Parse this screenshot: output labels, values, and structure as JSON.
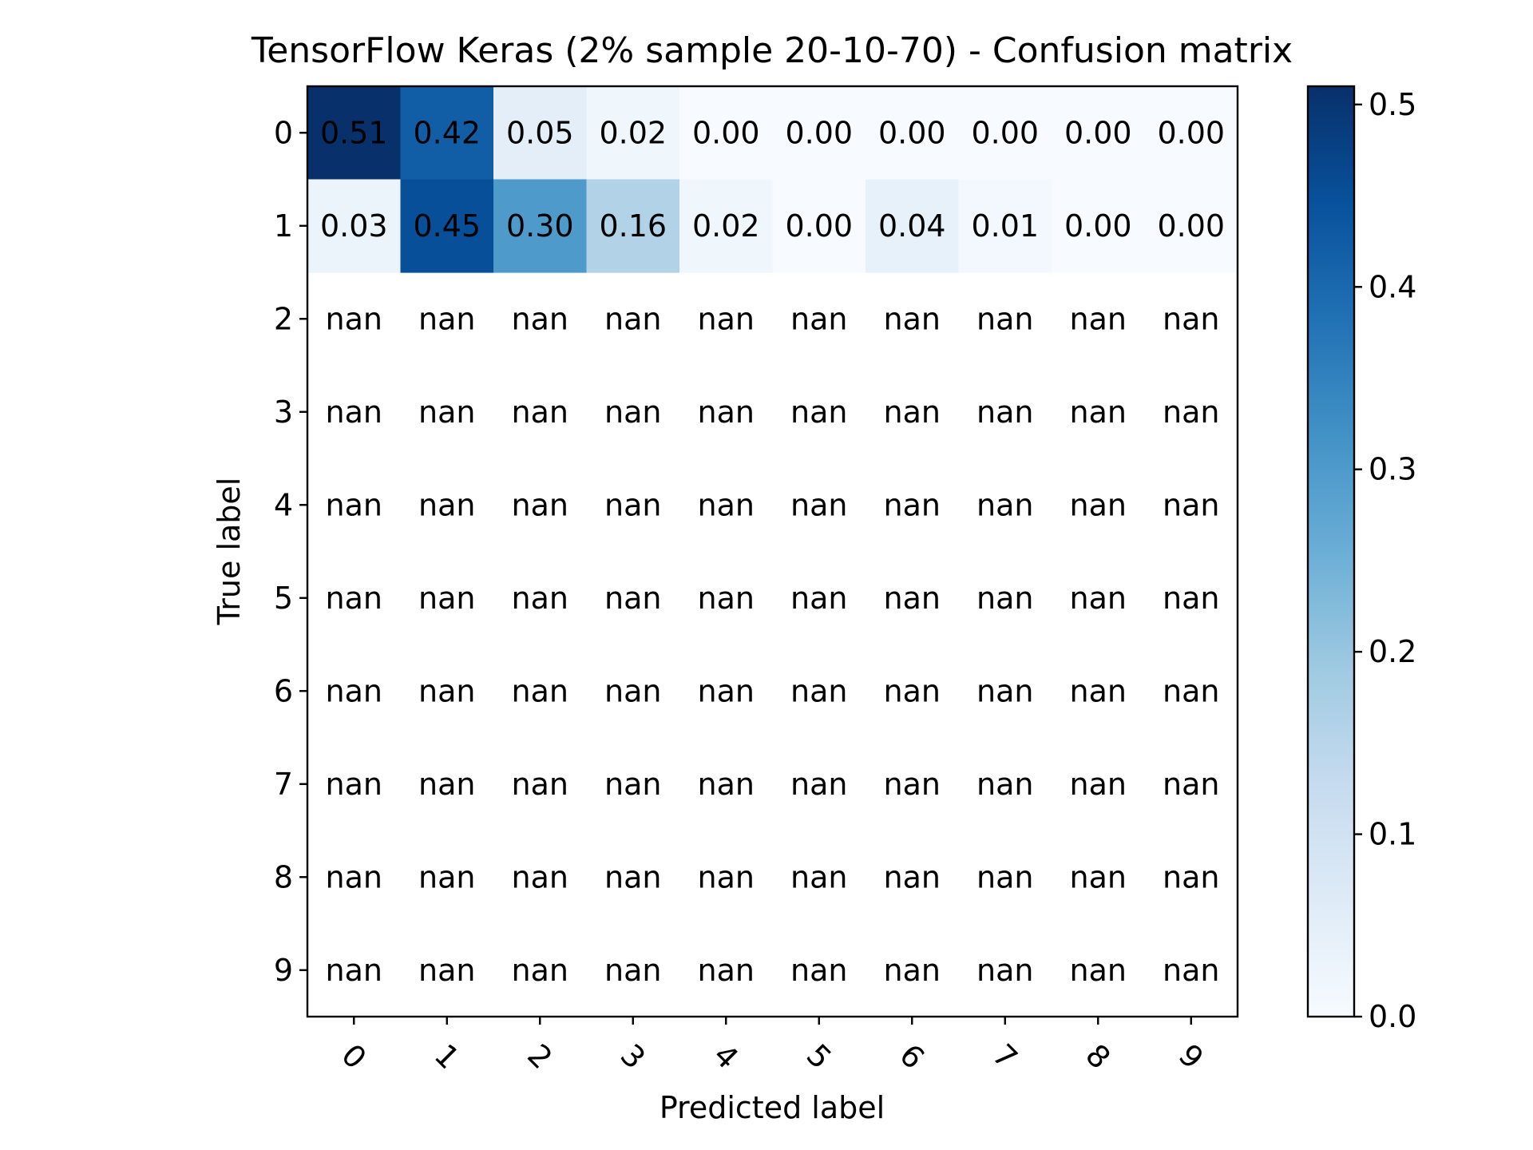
{
  "chart_data": {
    "type": "heatmap",
    "title": "TensorFlow Keras (2% sample 20-10-70) - Confusion matrix",
    "xlabel": "Predicted label",
    "ylabel": "True label",
    "x_categories": [
      "0",
      "1",
      "2",
      "3",
      "4",
      "5",
      "6",
      "7",
      "8",
      "9"
    ],
    "y_categories": [
      "0",
      "1",
      "2",
      "3",
      "4",
      "5",
      "6",
      "7",
      "8",
      "9"
    ],
    "values": [
      [
        0.51,
        0.42,
        0.05,
        0.02,
        0.0,
        0.0,
        0.0,
        0.0,
        0.0,
        0.0
      ],
      [
        0.03,
        0.45,
        0.3,
        0.16,
        0.02,
        0.0,
        0.04,
        0.01,
        0.0,
        0.0
      ],
      [
        null,
        null,
        null,
        null,
        null,
        null,
        null,
        null,
        null,
        null
      ],
      [
        null,
        null,
        null,
        null,
        null,
        null,
        null,
        null,
        null,
        null
      ],
      [
        null,
        null,
        null,
        null,
        null,
        null,
        null,
        null,
        null,
        null
      ],
      [
        null,
        null,
        null,
        null,
        null,
        null,
        null,
        null,
        null,
        null
      ],
      [
        null,
        null,
        null,
        null,
        null,
        null,
        null,
        null,
        null,
        null
      ],
      [
        null,
        null,
        null,
        null,
        null,
        null,
        null,
        null,
        null,
        null
      ],
      [
        null,
        null,
        null,
        null,
        null,
        null,
        null,
        null,
        null,
        null
      ],
      [
        null,
        null,
        null,
        null,
        null,
        null,
        null,
        null,
        null,
        null
      ]
    ],
    "cell_labels": [
      [
        "0.51",
        "0.42",
        "0.05",
        "0.02",
        "0.00",
        "0.00",
        "0.00",
        "0.00",
        "0.00",
        "0.00"
      ],
      [
        "0.03",
        "0.45",
        "0.30",
        "0.16",
        "0.02",
        "0.00",
        "0.04",
        "0.01",
        "0.00",
        "0.00"
      ],
      [
        "nan",
        "nan",
        "nan",
        "nan",
        "nan",
        "nan",
        "nan",
        "nan",
        "nan",
        "nan"
      ],
      [
        "nan",
        "nan",
        "nan",
        "nan",
        "nan",
        "nan",
        "nan",
        "nan",
        "nan",
        "nan"
      ],
      [
        "nan",
        "nan",
        "nan",
        "nan",
        "nan",
        "nan",
        "nan",
        "nan",
        "nan",
        "nan"
      ],
      [
        "nan",
        "nan",
        "nan",
        "nan",
        "nan",
        "nan",
        "nan",
        "nan",
        "nan",
        "nan"
      ],
      [
        "nan",
        "nan",
        "nan",
        "nan",
        "nan",
        "nan",
        "nan",
        "nan",
        "nan",
        "nan"
      ],
      [
        "nan",
        "nan",
        "nan",
        "nan",
        "nan",
        "nan",
        "nan",
        "nan",
        "nan",
        "nan"
      ],
      [
        "nan",
        "nan",
        "nan",
        "nan",
        "nan",
        "nan",
        "nan",
        "nan",
        "nan",
        "nan"
      ],
      [
        "nan",
        "nan",
        "nan",
        "nan",
        "nan",
        "nan",
        "nan",
        "nan",
        "nan",
        "nan"
      ]
    ],
    "colormap": "Blues",
    "colormap_stops": [
      "#f7fbff",
      "#deebf7",
      "#c6dbef",
      "#9ecae1",
      "#6baed6",
      "#4292c6",
      "#2171b5",
      "#08519c",
      "#08306b"
    ],
    "colorbar_range": [
      0.0,
      0.51
    ],
    "colorbar_ticks": [
      "0.0",
      "0.1",
      "0.2",
      "0.3",
      "0.4",
      "0.5"
    ],
    "colorbar_tick_values": [
      0.0,
      0.1,
      0.2,
      0.3,
      0.4,
      0.5
    ],
    "x_tick_rotation": 45,
    "grid": false
  }
}
